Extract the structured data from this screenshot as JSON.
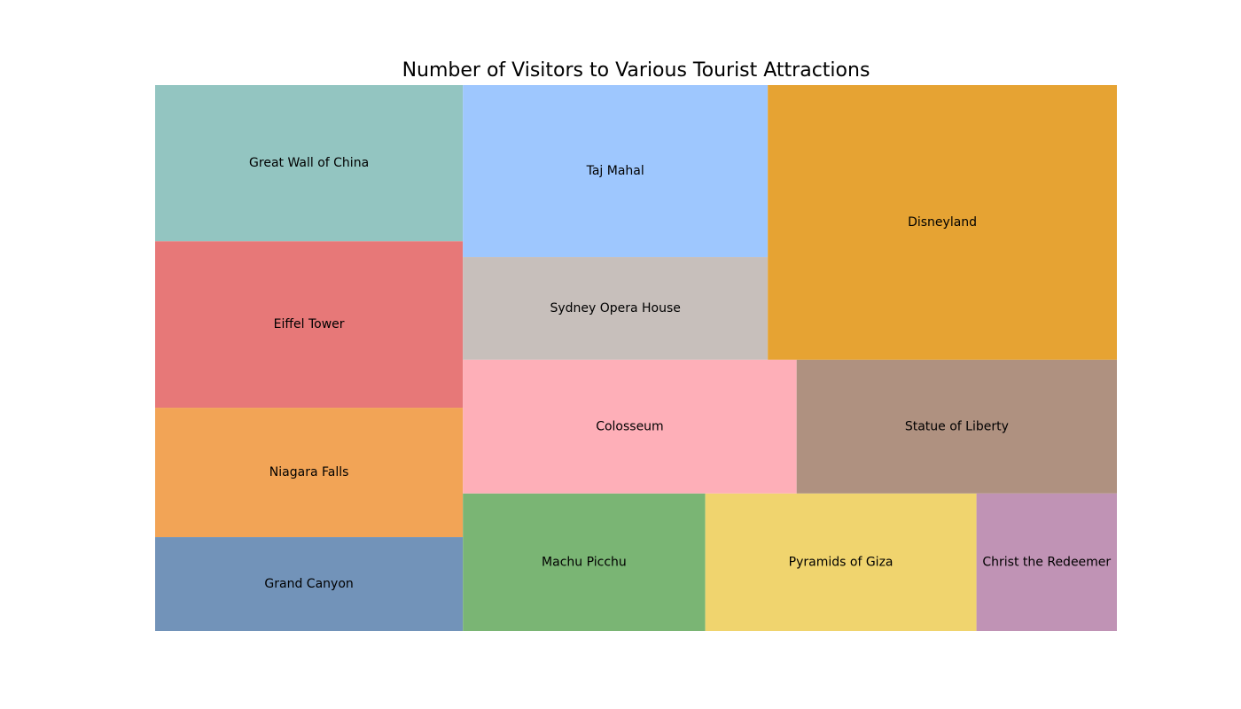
{
  "chart_data": {
    "type": "treemap",
    "title": "Number of Visitors to Various Tourist Attractions",
    "xlim": [
      0,
      100
    ],
    "ylim": [
      0,
      100
    ],
    "items": [
      {
        "label": "Grand Canyon",
        "x": 0,
        "y": 0,
        "dx": 32.0,
        "dy": 17.2,
        "color": "#7293b9"
      },
      {
        "label": "Niagara Falls",
        "x": 0,
        "y": 17.2,
        "dx": 32.0,
        "dy": 23.7,
        "color": "#f2a456"
      },
      {
        "label": "Eiffel Tower",
        "x": 0,
        "y": 40.9,
        "dx": 32.0,
        "dy": 30.5,
        "color": "#e77878"
      },
      {
        "label": "Great Wall of China",
        "x": 0,
        "y": 71.4,
        "dx": 32.0,
        "dy": 28.6,
        "color": "#93c5c1"
      },
      {
        "label": "Machu Picchu",
        "x": 32.0,
        "y": 0,
        "dx": 25.2,
        "dy": 25.2,
        "color": "#7ab574"
      },
      {
        "label": "Pyramids of Giza",
        "x": 57.2,
        "y": 0,
        "dx": 28.2,
        "dy": 25.2,
        "color": "#f0d46e"
      },
      {
        "label": "Christ the Redeemer",
        "x": 85.4,
        "y": 0,
        "dx": 14.6,
        "dy": 25.2,
        "color": "#c093b5"
      },
      {
        "label": "Colosseum",
        "x": 32.0,
        "y": 25.2,
        "dx": 34.7,
        "dy": 24.5,
        "color": "#feafb8"
      },
      {
        "label": "Statue of Liberty",
        "x": 66.7,
        "y": 25.2,
        "dx": 33.3,
        "dy": 24.5,
        "color": "#af9180"
      },
      {
        "label": "Sydney Opera House",
        "x": 32.0,
        "y": 49.7,
        "dx": 31.7,
        "dy": 18.8,
        "color": "#c7bfbb"
      },
      {
        "label": "Taj Mahal",
        "x": 32.0,
        "y": 68.5,
        "dx": 31.7,
        "dy": 31.5,
        "color": "#9ec7fe"
      },
      {
        "label": "Disneyland",
        "x": 63.7,
        "y": 49.7,
        "dx": 36.3,
        "dy": 50.3,
        "color": "#e6a333"
      }
    ]
  }
}
